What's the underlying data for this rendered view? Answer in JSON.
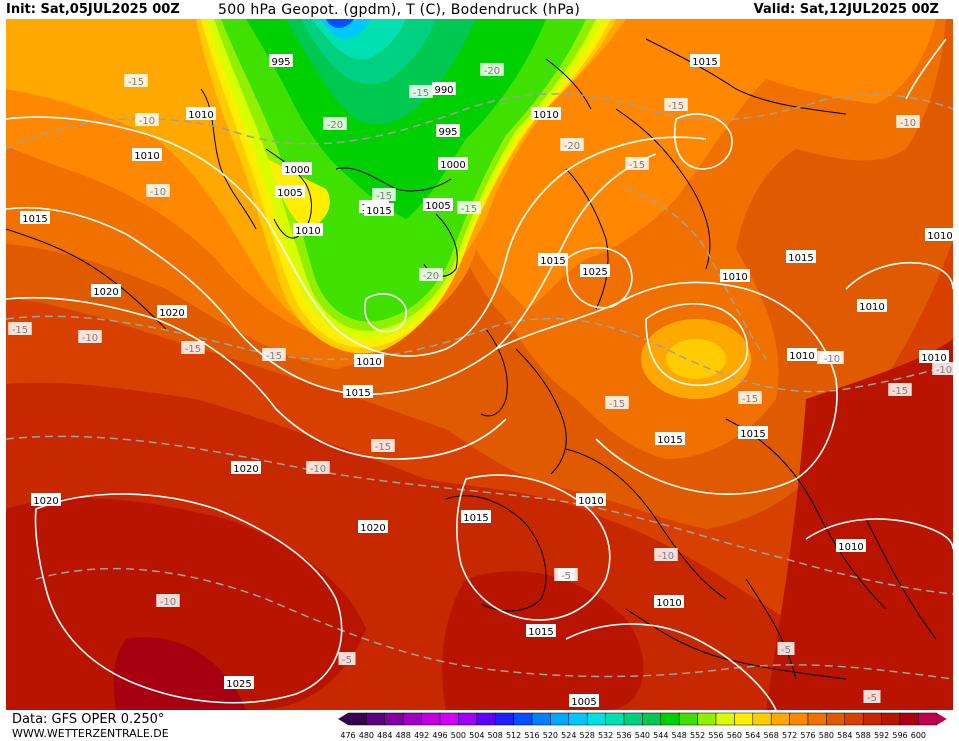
{
  "header": {
    "init": "Init: Sat,05JUL2025 00Z",
    "title": "500 hPa Geopot. (gpdm), T (C), Bodendruck (hPa)",
    "valid": "Valid: Sat,12JUL2025 00Z"
  },
  "footer": {
    "data": "Data: GFS OPER 0.250°",
    "site": "WWW.WETTERZENTRALE.DE"
  },
  "legend": {
    "values": [
      "476",
      "480",
      "484",
      "488",
      "492",
      "496",
      "500",
      "504",
      "508",
      "512",
      "516",
      "520",
      "524",
      "528",
      "532",
      "536",
      "540",
      "544",
      "548",
      "552",
      "556",
      "560",
      "564",
      "568",
      "572",
      "576",
      "580",
      "584",
      "588",
      "592",
      "596",
      "600"
    ],
    "colors": [
      "#3a0050",
      "#5a0080",
      "#8000a0",
      "#a000c0",
      "#c000e0",
      "#d000ff",
      "#a000ff",
      "#6000ff",
      "#2020ff",
      "#0050ff",
      "#0080ff",
      "#00a8ff",
      "#00c8ff",
      "#00e0e0",
      "#00e0b0",
      "#00d080",
      "#00c850",
      "#00d000",
      "#40e000",
      "#90f000",
      "#d8ff00",
      "#ffee00",
      "#ffcc00",
      "#ffa800",
      "#ff8800",
      "#f07000",
      "#e05a00",
      "#d84000",
      "#c82800",
      "#b81400",
      "#a80010",
      "#c00050"
    ]
  },
  "isobar_labels": [
    {
      "t": "995"
    },
    {
      "t": "990"
    },
    {
      "t": "995"
    },
    {
      "t": "1000"
    },
    {
      "t": "1000"
    },
    {
      "t": "1005"
    },
    {
      "t": "1005"
    },
    {
      "t": "1010"
    },
    {
      "t": "1010"
    },
    {
      "t": "1010"
    },
    {
      "t": "1010"
    },
    {
      "t": "1015"
    },
    {
      "t": "1015"
    },
    {
      "t": "1015"
    },
    {
      "t": "1015"
    },
    {
      "t": "1015"
    },
    {
      "t": "1020"
    },
    {
      "t": "1020"
    },
    {
      "t": "1020"
    },
    {
      "t": "1025"
    },
    {
      "t": "1010"
    },
    {
      "t": "1010"
    },
    {
      "t": "1010"
    },
    {
      "t": "1010"
    },
    {
      "t": "1015"
    },
    {
      "t": "1015"
    },
    {
      "t": "1020"
    },
    {
      "t": "1020"
    },
    {
      "t": "1025"
    },
    {
      "t": "1015"
    },
    {
      "t": "1010"
    },
    {
      "t": "1010"
    },
    {
      "t": "1015"
    },
    {
      "t": "1010"
    },
    {
      "t": "1010"
    },
    {
      "t": "1025"
    },
    {
      "t": "1005"
    },
    {
      "t": "1010"
    },
    {
      "t": "1015"
    },
    {
      "t": "1010"
    }
  ],
  "temp_labels": [
    {
      "t": "-15"
    },
    {
      "t": "-10"
    },
    {
      "t": "-10"
    },
    {
      "t": "-15"
    },
    {
      "t": "-20"
    },
    {
      "t": "-15"
    },
    {
      "t": "-20"
    },
    {
      "t": "-20"
    },
    {
      "t": "-15"
    },
    {
      "t": "-15"
    },
    {
      "t": "-20"
    },
    {
      "t": "-15"
    },
    {
      "t": "-15"
    },
    {
      "t": "-15"
    },
    {
      "t": "-10"
    },
    {
      "t": "-15"
    },
    {
      "t": "-15"
    },
    {
      "t": "-15"
    },
    {
      "t": "-10"
    },
    {
      "t": "-10"
    },
    {
      "t": "-10"
    },
    {
      "t": "-10"
    },
    {
      "t": "-10"
    },
    {
      "t": "-5"
    },
    {
      "t": "-5"
    },
    {
      "t": "-5"
    },
    {
      "t": "-10"
    },
    {
      "t": "-15"
    },
    {
      "t": "-10"
    },
    {
      "t": "-15"
    },
    {
      "t": "-5"
    },
    {
      "t": "-10"
    }
  ]
}
